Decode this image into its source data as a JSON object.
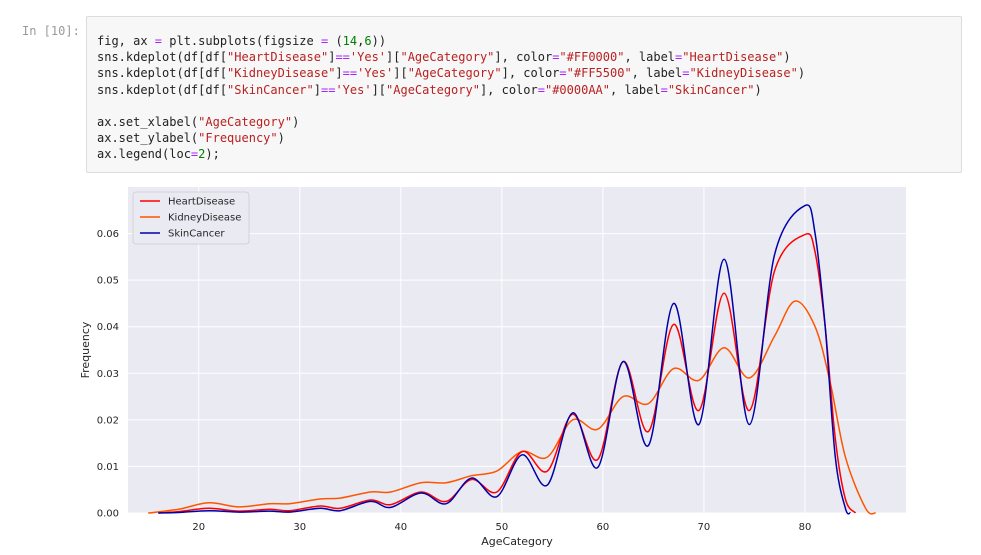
{
  "cell": {
    "prompt": "In [10]:",
    "code_lines": [
      [
        {
          "t": "fig, ax "
        },
        {
          "t": "=",
          "c": "op"
        },
        {
          "t": " plt.subplots(figsize "
        },
        {
          "t": "=",
          "c": "op"
        },
        {
          "t": " ("
        },
        {
          "t": "14",
          "c": "n"
        },
        {
          "t": ","
        },
        {
          "t": "6",
          "c": "n"
        },
        {
          "t": "))"
        }
      ],
      [
        {
          "t": "sns.kdeplot(df[df["
        },
        {
          "t": "\"HeartDisease\"",
          "c": "s"
        },
        {
          "t": "]"
        },
        {
          "t": "==",
          "c": "op"
        },
        {
          "t": "'Yes'",
          "c": "s"
        },
        {
          "t": "]["
        },
        {
          "t": "\"AgeCategory\"",
          "c": "s"
        },
        {
          "t": "], color"
        },
        {
          "t": "=",
          "c": "op"
        },
        {
          "t": "\"#FF0000\"",
          "c": "s"
        },
        {
          "t": ", label"
        },
        {
          "t": "=",
          "c": "op"
        },
        {
          "t": "\"HeartDisease\"",
          "c": "s"
        },
        {
          "t": ")"
        }
      ],
      [
        {
          "t": "sns.kdeplot(df[df["
        },
        {
          "t": "\"KidneyDisease\"",
          "c": "s"
        },
        {
          "t": "]"
        },
        {
          "t": "==",
          "c": "op"
        },
        {
          "t": "'Yes'",
          "c": "s"
        },
        {
          "t": "]["
        },
        {
          "t": "\"AgeCategory\"",
          "c": "s"
        },
        {
          "t": "], color"
        },
        {
          "t": "=",
          "c": "op"
        },
        {
          "t": "\"#FF5500\"",
          "c": "s"
        },
        {
          "t": ", label"
        },
        {
          "t": "=",
          "c": "op"
        },
        {
          "t": "\"KidneyDisease\"",
          "c": "s"
        },
        {
          "t": ")"
        }
      ],
      [
        {
          "t": "sns.kdeplot(df[df["
        },
        {
          "t": "\"SkinCancer\"",
          "c": "s"
        },
        {
          "t": "]"
        },
        {
          "t": "==",
          "c": "op"
        },
        {
          "t": "'Yes'",
          "c": "s"
        },
        {
          "t": "]["
        },
        {
          "t": "\"AgeCategory\"",
          "c": "s"
        },
        {
          "t": "], color"
        },
        {
          "t": "=",
          "c": "op"
        },
        {
          "t": "\"#0000AA\"",
          "c": "s"
        },
        {
          "t": ", label"
        },
        {
          "t": "=",
          "c": "op"
        },
        {
          "t": "\"SkinCancer\"",
          "c": "s"
        },
        {
          "t": ")"
        }
      ],
      [],
      [
        {
          "t": "ax.set_xlabel("
        },
        {
          "t": "\"AgeCategory\"",
          "c": "s"
        },
        {
          "t": ")"
        }
      ],
      [
        {
          "t": "ax.set_ylabel("
        },
        {
          "t": "\"Frequency\"",
          "c": "s"
        },
        {
          "t": ")"
        }
      ],
      [
        {
          "t": "ax.legend(loc"
        },
        {
          "t": "=",
          "c": "op"
        },
        {
          "t": "2",
          "c": "n"
        },
        {
          "t": ");"
        }
      ]
    ]
  },
  "chart_data": {
    "type": "line",
    "title": "",
    "xlabel": "AgeCategory",
    "ylabel": "Frequency",
    "xlim": [
      13,
      90
    ],
    "ylim": [
      0,
      0.07
    ],
    "xticks": [
      20,
      30,
      40,
      50,
      60,
      70,
      80
    ],
    "yticks": [
      0,
      0.01,
      0.02,
      0.03,
      0.04,
      0.05,
      0.06
    ],
    "ytick_labels": [
      "0.00",
      "0.01",
      "0.02",
      "0.03",
      "0.04",
      "0.05",
      "0.06"
    ],
    "grid": true,
    "background": "#eaeaf2",
    "legend_position": "top-left",
    "series": [
      {
        "name": "HeartDisease",
        "color": "#FF0000",
        "points": [
          [
            16,
            0
          ],
          [
            18,
            0.0003
          ],
          [
            21,
            0.001
          ],
          [
            24,
            0.0004
          ],
          [
            27,
            0.0008
          ],
          [
            29,
            0.0005
          ],
          [
            32,
            0.0015
          ],
          [
            34,
            0.001
          ],
          [
            37,
            0.0028
          ],
          [
            39,
            0.0018
          ],
          [
            42,
            0.0045
          ],
          [
            44.5,
            0.0025
          ],
          [
            47,
            0.0072
          ],
          [
            49.5,
            0.0045
          ],
          [
            52,
            0.0132
          ],
          [
            54.5,
            0.009
          ],
          [
            57,
            0.0212
          ],
          [
            59.5,
            0.0115
          ],
          [
            62,
            0.0325
          ],
          [
            64.5,
            0.0175
          ],
          [
            67,
            0.0405
          ],
          [
            69.5,
            0.022
          ],
          [
            72,
            0.0472
          ],
          [
            74.5,
            0.022
          ],
          [
            77,
            0.052
          ],
          [
            80,
            0.0598
          ],
          [
            81,
            0.056
          ],
          [
            82,
            0.04
          ],
          [
            83,
            0.016
          ],
          [
            84,
            0.003
          ],
          [
            85,
            0
          ]
        ]
      },
      {
        "name": "KidneyDisease",
        "color": "#FF5500",
        "points": [
          [
            15,
            0
          ],
          [
            18,
            0.0008
          ],
          [
            21,
            0.0022
          ],
          [
            24,
            0.0013
          ],
          [
            27,
            0.002
          ],
          [
            29,
            0.002
          ],
          [
            32,
            0.003
          ],
          [
            34,
            0.0032
          ],
          [
            37,
            0.0045
          ],
          [
            39,
            0.0045
          ],
          [
            42,
            0.0065
          ],
          [
            44.5,
            0.0065
          ],
          [
            47,
            0.008
          ],
          [
            49.5,
            0.009
          ],
          [
            52,
            0.0132
          ],
          [
            54.5,
            0.012
          ],
          [
            57,
            0.02
          ],
          [
            59.5,
            0.018
          ],
          [
            62,
            0.025
          ],
          [
            64.5,
            0.0235
          ],
          [
            67,
            0.031
          ],
          [
            69.5,
            0.0285
          ],
          [
            72,
            0.0355
          ],
          [
            74.5,
            0.029
          ],
          [
            77,
            0.038
          ],
          [
            79,
            0.0455
          ],
          [
            81,
            0.04
          ],
          [
            82.5,
            0.028
          ],
          [
            84,
            0.012
          ],
          [
            86,
            0.001
          ],
          [
            87,
            0
          ]
        ]
      },
      {
        "name": "SkinCancer",
        "color": "#0000AA",
        "points": [
          [
            16,
            0
          ],
          [
            18,
            0.0001
          ],
          [
            21,
            0.0005
          ],
          [
            24,
            0.0002
          ],
          [
            27,
            0.0004
          ],
          [
            29,
            0.0002
          ],
          [
            32,
            0.001
          ],
          [
            34,
            0.0005
          ],
          [
            37,
            0.0025
          ],
          [
            39,
            0.0012
          ],
          [
            42,
            0.0043
          ],
          [
            44.5,
            0.002
          ],
          [
            47,
            0.0075
          ],
          [
            49.5,
            0.0035
          ],
          [
            52,
            0.0125
          ],
          [
            54.5,
            0.006
          ],
          [
            57,
            0.0215
          ],
          [
            59.5,
            0.0098
          ],
          [
            62,
            0.0325
          ],
          [
            64.5,
            0.0145
          ],
          [
            67,
            0.045
          ],
          [
            69.5,
            0.019
          ],
          [
            72,
            0.0545
          ],
          [
            74.5,
            0.019
          ],
          [
            77,
            0.0555
          ],
          [
            80,
            0.066
          ],
          [
            81,
            0.06
          ],
          [
            82,
            0.04
          ],
          [
            83,
            0.012
          ],
          [
            84,
            0.001
          ],
          [
            84.5,
            0
          ]
        ]
      }
    ]
  }
}
